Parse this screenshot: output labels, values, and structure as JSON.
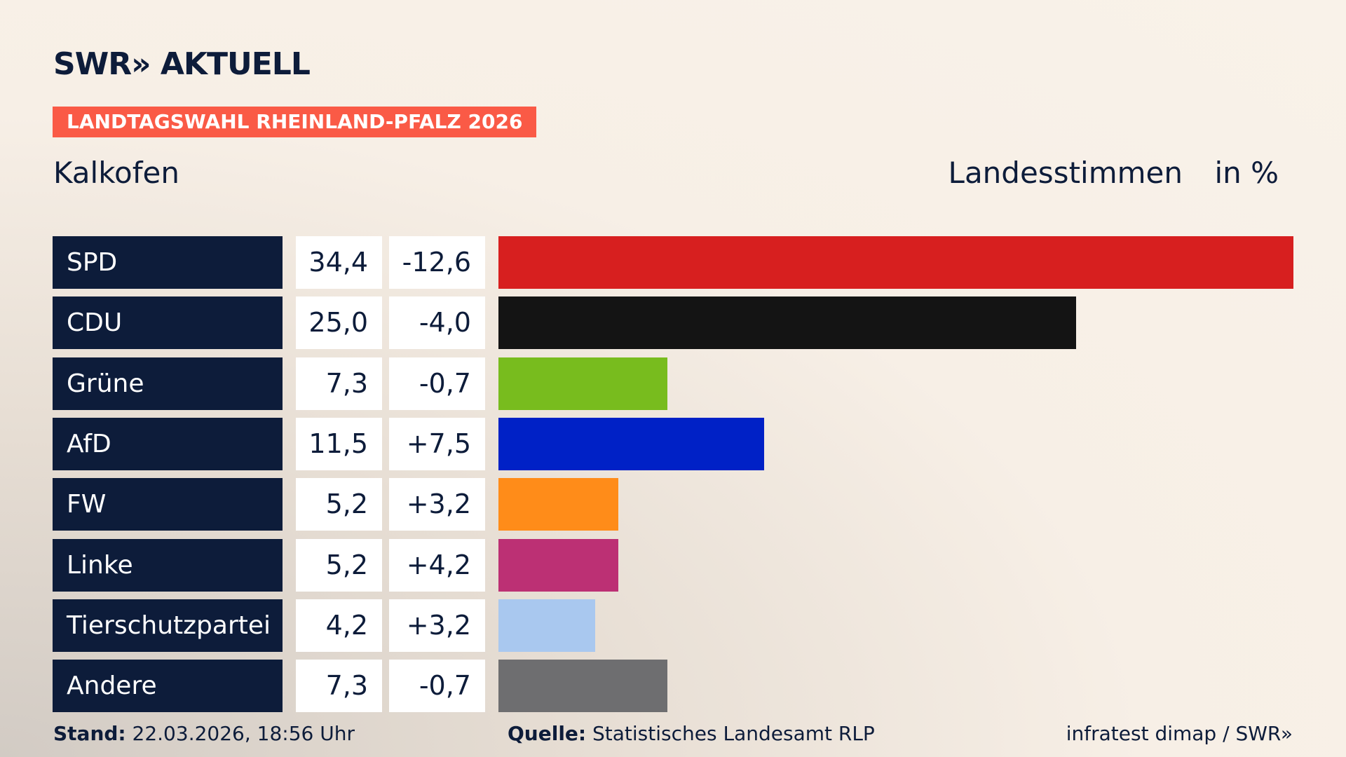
{
  "header": {
    "logo": "SWR» AKTUELL",
    "tag": "LANDTAGSWAHL RHEINLAND-PFALZ 2026"
  },
  "chart_data": {
    "type": "bar",
    "title": "Kalkofen",
    "subtitle": "Landesstimmen",
    "unit": "in %",
    "categories": [
      "SPD",
      "CDU",
      "Grüne",
      "AfD",
      "FW",
      "Linke",
      "Tierschutzpartei",
      "Andere"
    ],
    "values": [
      34.4,
      25.0,
      7.3,
      11.5,
      5.2,
      5.2,
      4.2,
      7.3
    ],
    "value_labels": [
      "34,4",
      "25,0",
      "7,3",
      "11,5",
      "5,2",
      "5,2",
      "4,2",
      "7,3"
    ],
    "changes": [
      "-12,6",
      "-4,0",
      "-0,7",
      "+7,5",
      "+3,2",
      "+4,2",
      "+3,2",
      "-0,7"
    ],
    "colors": [
      "#d71f1f",
      "#141414",
      "#78bc1e",
      "#0021c6",
      "#ff8c19",
      "#bc3074",
      "#a9c8ef",
      "#6e6e70"
    ],
    "xlim": [
      0,
      34.4
    ]
  },
  "footer": {
    "stand_label": "Stand:",
    "stand": "22.03.2026, 18:56 Uhr",
    "source_label": "Quelle:",
    "source": "Statistisches Landesamt RLP",
    "credit": "infratest dimap / SWR»"
  }
}
